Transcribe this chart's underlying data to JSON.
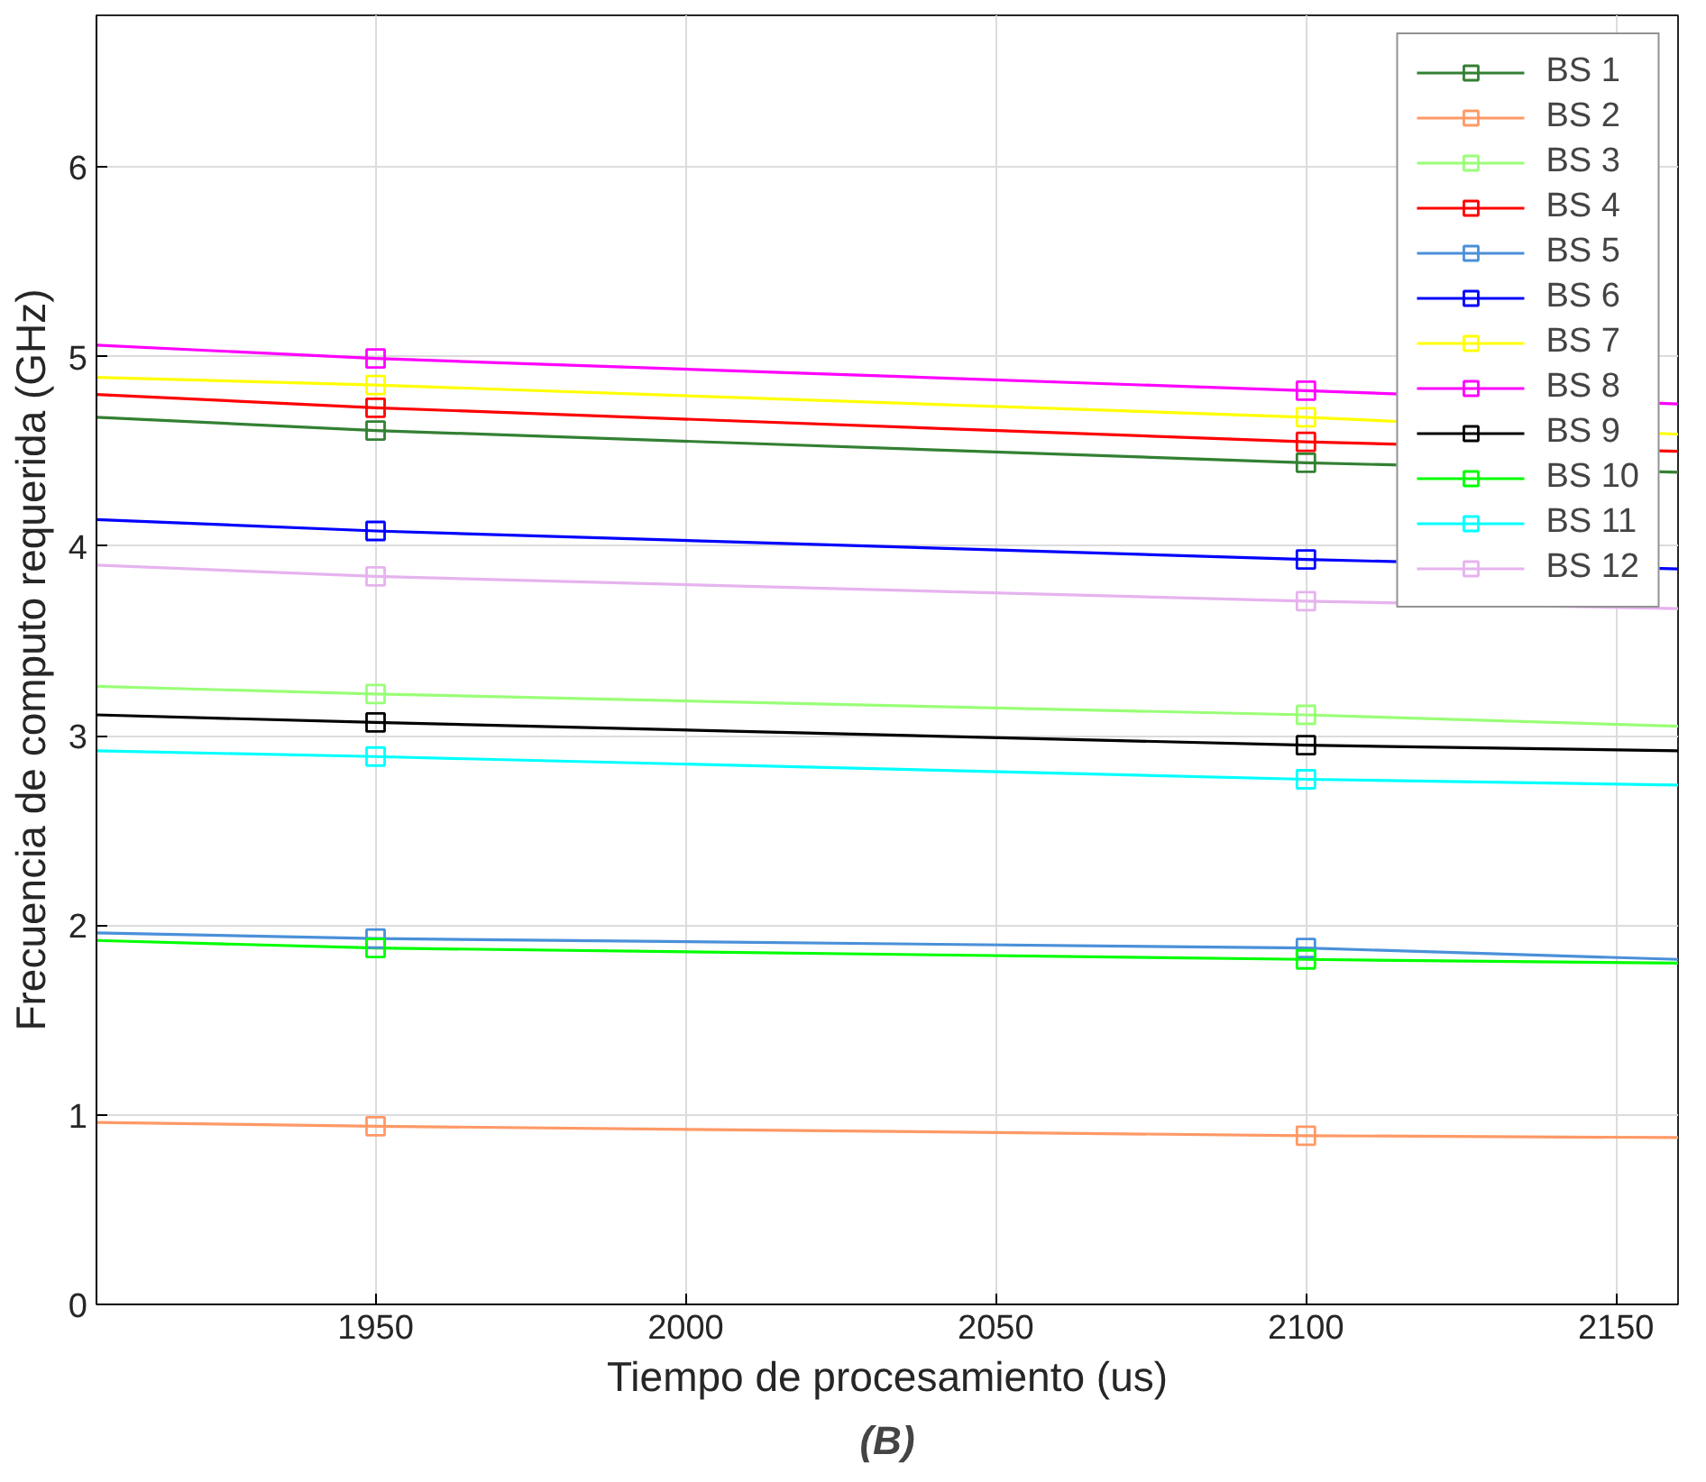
{
  "chart_data": {
    "type": "line",
    "xlabel": "Tiempo de procesamiento (us)",
    "ylabel": "Frecuencia de computo requerida (GHz)",
    "x": [
      1905,
      1950,
      2100,
      2160
    ],
    "xlim": [
      1905,
      2160
    ],
    "xticks": [
      1950,
      2000,
      2050,
      2100,
      2150
    ],
    "ylim": [
      0,
      6.8
    ],
    "yticks": [
      0,
      1,
      2,
      3,
      4,
      5,
      6
    ],
    "grid": true,
    "legend": "top right",
    "marker": "square",
    "line_style": "solid",
    "annotations": [
      "(B)"
    ],
    "series": [
      {
        "name": "BS 1",
        "color": "#338033",
        "values": [
          4.68,
          4.61,
          4.44,
          4.39
        ]
      },
      {
        "name": "BS 2",
        "color": "#ff9966",
        "values": [
          0.96,
          0.94,
          0.89,
          0.88
        ]
      },
      {
        "name": "BS 3",
        "color": "#99ff77",
        "values": [
          3.26,
          3.22,
          3.11,
          3.05
        ]
      },
      {
        "name": "BS 4",
        "color": "#ff0000",
        "values": [
          4.8,
          4.73,
          4.55,
          4.5
        ]
      },
      {
        "name": "BS 5",
        "color": "#4a90d9",
        "values": [
          1.96,
          1.93,
          1.88,
          1.82
        ]
      },
      {
        "name": "BS 6",
        "color": "#0000ff",
        "values": [
          4.14,
          4.08,
          3.93,
          3.88
        ]
      },
      {
        "name": "BS 7",
        "color": "#ffff00",
        "values": [
          4.89,
          4.85,
          4.68,
          4.59
        ]
      },
      {
        "name": "BS 8",
        "color": "#ff00ff",
        "values": [
          5.06,
          4.99,
          4.82,
          4.75
        ]
      },
      {
        "name": "BS 9",
        "color": "#000000",
        "values": [
          3.11,
          3.07,
          2.95,
          2.92
        ]
      },
      {
        "name": "BS 10",
        "color": "#00ff00",
        "values": [
          1.92,
          1.88,
          1.82,
          1.8
        ]
      },
      {
        "name": "BS 11",
        "color": "#00ffff",
        "values": [
          2.92,
          2.89,
          2.77,
          2.74
        ]
      },
      {
        "name": "BS 12",
        "color": "#e6b3ee",
        "values": [
          3.9,
          3.84,
          3.71,
          3.67
        ]
      }
    ]
  }
}
